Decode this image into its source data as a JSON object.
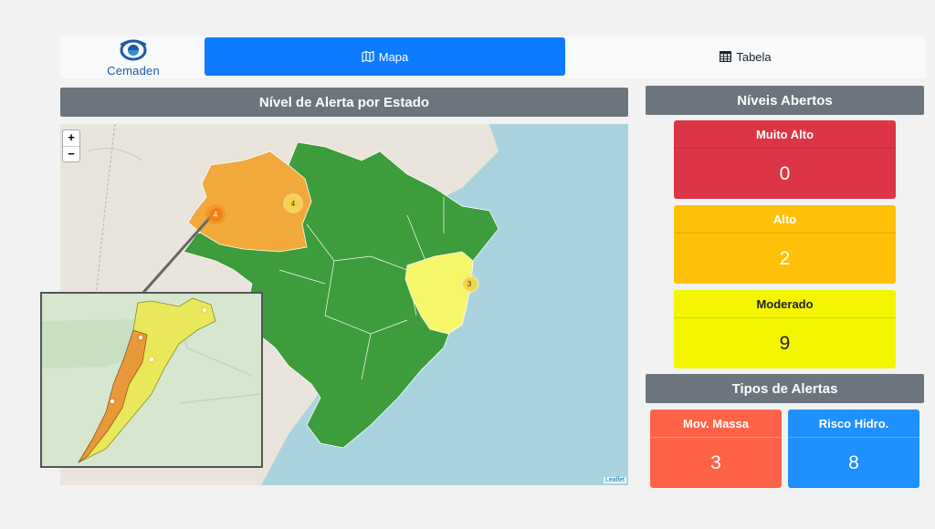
{
  "brand": {
    "name": "Cemaden"
  },
  "nav": {
    "tabs": [
      {
        "label": "Mapa",
        "icon": "map-icon",
        "active": true
      },
      {
        "label": "Tabela",
        "icon": "table-icon",
        "active": false
      }
    ]
  },
  "map_panel": {
    "title": "Nível de Alerta por Estado",
    "zoom_in": "+",
    "zoom_out": "−",
    "attribution": "Leaflet",
    "clusters": [
      {
        "count": "4"
      },
      {
        "count": "4"
      },
      {
        "count": "3"
      }
    ]
  },
  "levels_panel": {
    "title": "Níveis Abertos",
    "levels": [
      {
        "label": "Muito Alto",
        "value": "0",
        "color": "#dc3545"
      },
      {
        "label": "Alto",
        "value": "2",
        "color": "#ffc107"
      },
      {
        "label": "Moderado",
        "value": "9",
        "color": "#f5f500"
      }
    ]
  },
  "types_panel": {
    "title": "Tipos de Alertas",
    "types": [
      {
        "label": "Mov. Massa",
        "value": "3",
        "color": "#ff6347"
      },
      {
        "label": "Risco Hidro.",
        "value": "8",
        "color": "#1e90ff"
      }
    ]
  }
}
